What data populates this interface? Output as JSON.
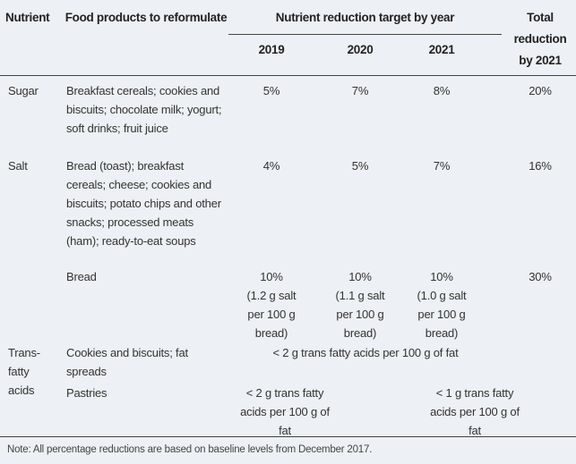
{
  "header": {
    "nutrient": "Nutrient",
    "food": "Food products to reformulate",
    "target_by_year": "Nutrient reduction target by year",
    "years": [
      "2019",
      "2020",
      "2021"
    ],
    "total": "Total reduction by 2021"
  },
  "rows": [
    {
      "nutrient": "Sugar",
      "food": "Breakfast cereals; cookies and biscuits; chocolate milk; yogurt; soft drinks; fruit juice",
      "targets": [
        "5%",
        "7%",
        "8%"
      ],
      "total": "20%"
    },
    {
      "nutrient": "Salt",
      "food": "Bread (toast); breakfast cereals; cheese; cookies and biscuits; potato chips and other snacks; processed meats (ham); ready-to-eat soups",
      "targets": [
        "4%",
        "5%",
        "7%"
      ],
      "total": "16%"
    },
    {
      "food": "Bread",
      "targets": [
        "10%",
        "10%",
        "10%"
      ],
      "target_notes": [
        "(1.2 g salt per 100 g bread)",
        "(1.1 g salt per 100 g bread)",
        "(1.0 g salt per 100 g bread)"
      ],
      "total": "30%"
    },
    {
      "nutrient": "Trans-fatty acids",
      "food": "Cookies and biscuits; fat spreads",
      "targets": [
        "< 2 g trans fatty acids per 100 g of fat"
      ]
    },
    {
      "food": "Pastries",
      "targets": [
        "< 2 g trans fatty acids per 100 g of fat",
        "< 1 g trans fatty acids per 100 g of fat"
      ]
    }
  ],
  "note": "Note: All percentage reductions are based on baseline levels from December 2017."
}
